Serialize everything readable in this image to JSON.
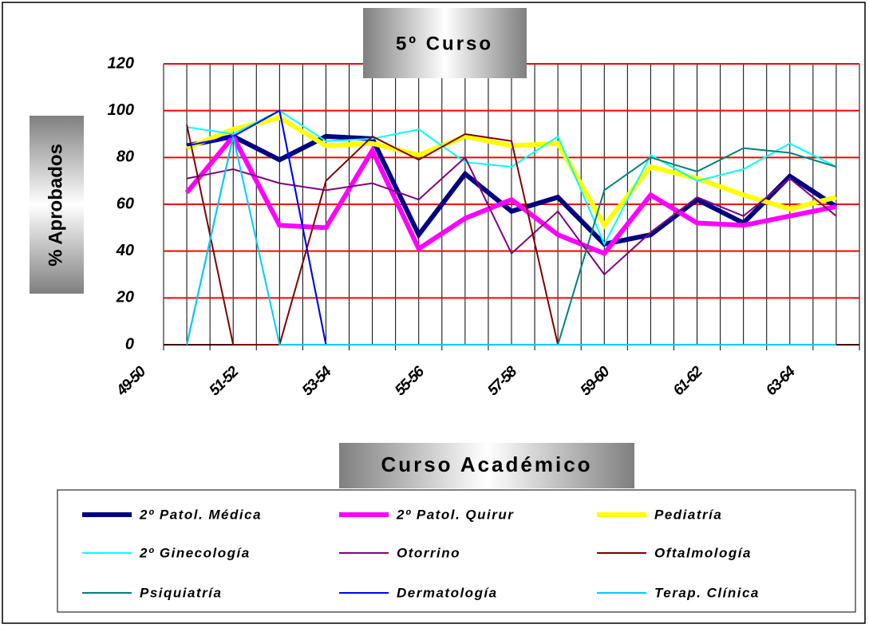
{
  "chart_data": {
    "type": "line",
    "title": "5º Curso",
    "x_label": "Curso Académico",
    "y_label": "% Aprobados",
    "categories": [
      "49-50",
      null,
      "51-52",
      null,
      "53-54",
      null,
      "55-56",
      null,
      "57-58",
      null,
      "59-60",
      null,
      "61-62",
      null,
      "63-64"
    ],
    "ylim": [
      0,
      120
    ],
    "yticks": [
      0,
      20,
      40,
      60,
      80,
      100,
      120
    ],
    "grid": true,
    "grid_color": "#ff0000",
    "series": [
      {
        "name": "2º Patol. Médica",
        "color": "#000080",
        "width": 6,
        "values": [
          85,
          89,
          79,
          89,
          88,
          47,
          73,
          57,
          63,
          43,
          47,
          62,
          52,
          72,
          59
        ]
      },
      {
        "name": "2º Patol. Quirur",
        "color": "#ff00ff",
        "width": 6,
        "values": [
          65,
          89,
          51,
          50,
          83,
          41,
          54,
          62,
          47,
          39,
          64,
          52,
          51,
          55,
          59
        ]
      },
      {
        "name": "Pediatría",
        "color": "#ffff00",
        "width": 6,
        "values": [
          84,
          92,
          97,
          85,
          86,
          81,
          89,
          85,
          86,
          51,
          76,
          71,
          64,
          58,
          63
        ]
      },
      {
        "name": "2º Ginecología",
        "color": "#00ffff",
        "width": 2,
        "values": [
          93,
          90,
          100,
          87,
          88,
          92,
          78,
          76,
          89,
          43,
          81,
          70,
          75,
          86,
          76
        ]
      },
      {
        "name": "Otorrino",
        "color": "#800080",
        "width": 2,
        "values": [
          71,
          75,
          69,
          66,
          69,
          62,
          80,
          39,
          57,
          30,
          48,
          63,
          55,
          71,
          55
        ]
      },
      {
        "name": "Oftalmología",
        "color": "#800000",
        "width": 2,
        "values": [
          94,
          0,
          0,
          70,
          89,
          79,
          90,
          87,
          0,
          0,
          0,
          0,
          0,
          0,
          0
        ]
      },
      {
        "name": "Psiquiatría",
        "color": "#008080",
        "width": 2,
        "values": [
          0,
          89,
          100,
          0,
          0,
          0,
          0,
          0,
          0,
          66,
          80,
          74,
          84,
          82,
          76
        ]
      },
      {
        "name": "Dermatología",
        "color": "#0000ff",
        "width": 2,
        "values": [
          85,
          89,
          100,
          0,
          0,
          0,
          0,
          0,
          0,
          0,
          0,
          0,
          0,
          0,
          0
        ]
      },
      {
        "name": "Terap. Clínica",
        "color": "#00ccff",
        "width": 2,
        "values": [
          0,
          89,
          0,
          0,
          0,
          0,
          0,
          0,
          0,
          0,
          0,
          0,
          0,
          0,
          0
        ]
      }
    ]
  }
}
